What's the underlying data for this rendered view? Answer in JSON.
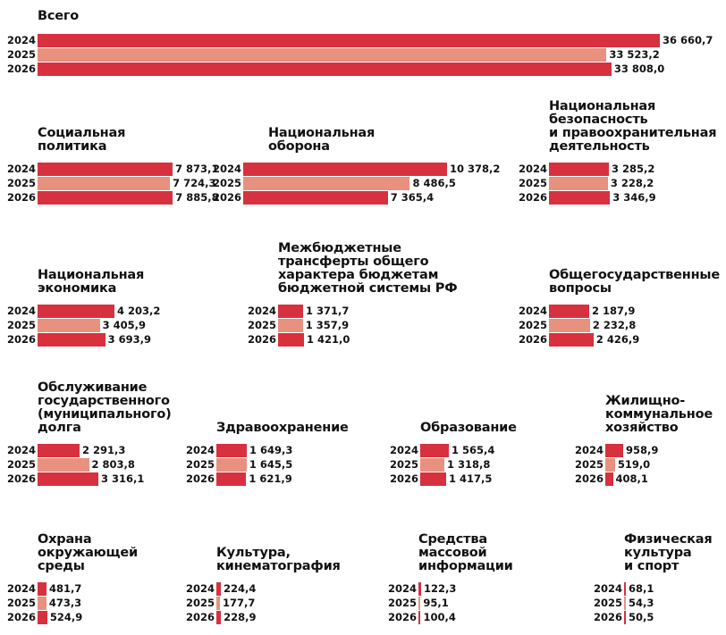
{
  "colors": {
    "dark": "#d7303f",
    "light": "#e8917f"
  },
  "chart_data": {
    "type": "bar",
    "orientation": "horizontal",
    "series": [
      "2024",
      "2025",
      "2026"
    ],
    "groups": [
      {
        "title": "Всего",
        "values": [
          36660.7,
          33523.2,
          33808.0
        ],
        "labels": [
          "36 660,7",
          "33 523,2",
          "33 808,0"
        ]
      },
      {
        "title": "Социальная\nполитика",
        "values": [
          7873.1,
          7724.3,
          7885.8
        ],
        "labels": [
          "7 873,1",
          "7 724,3",
          "7 885,8"
        ]
      },
      {
        "title": "Национальная\nоборона",
        "values": [
          10378.2,
          8486.5,
          7365.4
        ],
        "labels": [
          "10 378,2",
          "8 486,5",
          "7 365,4"
        ]
      },
      {
        "title": "Национальная\nбезопасность\nи правоохранительная\nдеятельность",
        "values": [
          3285.2,
          3228.2,
          3346.9
        ],
        "labels": [
          "3 285,2",
          "3 228,2",
          "3 346,9"
        ]
      },
      {
        "title": "Национальная\nэкономика",
        "values": [
          4203.2,
          3405.9,
          3693.9
        ],
        "labels": [
          "4 203,2",
          "3 405,9",
          "3 693,9"
        ]
      },
      {
        "title": "Межбюджетные\nтрансферты общего\nхарактера бюджетам\nбюджетной системы РФ",
        "values": [
          1371.7,
          1357.9,
          1421.0
        ],
        "labels": [
          "1 371,7",
          "1 357,9",
          "1 421,0"
        ]
      },
      {
        "title": "Общегосударственные\nвопросы",
        "values": [
          2187.9,
          2232.8,
          2426.9
        ],
        "labels": [
          "2 187,9",
          "2 232,8",
          "2 426,9"
        ]
      },
      {
        "title": "Обслуживание\nгосударственного\n(муниципального)\nдолга",
        "values": [
          2291.3,
          2803.8,
          3316.1
        ],
        "labels": [
          "2 291,3",
          "2 803,8",
          "3 316,1"
        ]
      },
      {
        "title": "Здравоохранение",
        "values": [
          1649.3,
          1645.5,
          1621.9
        ],
        "labels": [
          "1 649,3",
          "1 645,5",
          "1 621,9"
        ]
      },
      {
        "title": "Образование",
        "values": [
          1565.4,
          1318.8,
          1417.5
        ],
        "labels": [
          "1 565,4",
          "1 318,8",
          "1 417,5"
        ]
      },
      {
        "title": "Жилищно-\nкоммунальное\nхозяйство",
        "values": [
          958.9,
          519.0,
          408.1
        ],
        "labels": [
          "958,9",
          "519,0",
          "408,1"
        ]
      },
      {
        "title": "Охрана\nокружающей\nсреды",
        "values": [
          481.7,
          473.3,
          524.9
        ],
        "labels": [
          "481,7",
          "473,3",
          "524,9"
        ]
      },
      {
        "title": "Культура,\nкинематография",
        "values": [
          224.4,
          177.7,
          228.9
        ],
        "labels": [
          "224,4",
          "177,7",
          "228,9"
        ]
      },
      {
        "title": "Средства\nмассовой\nинформации",
        "values": [
          122.3,
          95.1,
          100.4
        ],
        "labels": [
          "122,3",
          "95,1",
          "100,4"
        ]
      },
      {
        "title": "Физическая\nкультура\nи спорт",
        "values": [
          68.1,
          54.3,
          50.5
        ],
        "labels": [
          "68,1",
          "54,3",
          "50,5"
        ]
      }
    ]
  }
}
